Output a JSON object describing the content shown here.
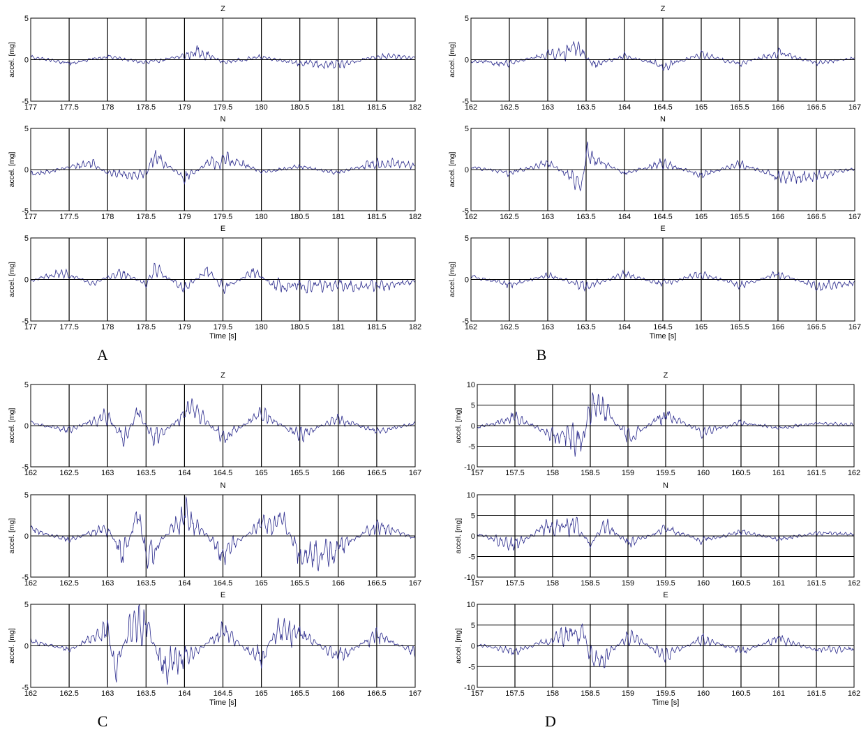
{
  "figure_title": "",
  "chart_data": [
    {
      "type": "line",
      "panel": "A",
      "component": "Z",
      "title": "Z",
      "ylabel": "accel. [mg]",
      "xlabel": "",
      "xlim": [
        177,
        182
      ],
      "ylim": [
        -5,
        5
      ],
      "xticks": [
        "177",
        "177.5",
        "178",
        "178.5",
        "179",
        "179.5",
        "180",
        "180.5",
        "181",
        "181.5",
        "182"
      ],
      "yticks": [
        "-5",
        "0",
        "5"
      ],
      "series": [
        {
          "x": [
            177,
            177.5,
            178,
            178.5,
            179,
            179.2,
            179.5,
            180,
            180.5,
            181,
            181.5,
            182
          ],
          "values": [
            0.6,
            -0.8,
            0.7,
            -0.7,
            0.8,
            1.9,
            -0.6,
            0.6,
            -0.8,
            -1.3,
            0.8,
            0.4
          ]
        }
      ]
    },
    {
      "type": "line",
      "panel": "A",
      "component": "N",
      "title": "N",
      "ylabel": "accel. [mg]",
      "xlabel": "",
      "xlim": [
        177,
        182
      ],
      "ylim": [
        -5,
        5
      ],
      "xticks": [
        "177",
        "177.5",
        "178",
        "178.5",
        "179",
        "179.5",
        "180",
        "180.5",
        "181",
        "181.5",
        "182"
      ],
      "yticks": [
        "-5",
        "0",
        "5"
      ],
      "series": [
        {
          "x": [
            177,
            177.5,
            177.8,
            178,
            178.5,
            178.6,
            179,
            179.3,
            179.6,
            180,
            180.5,
            181,
            181.5,
            182
          ],
          "values": [
            -1.3,
            0.5,
            1.5,
            -0.8,
            -1.2,
            3.0,
            -1.8,
            1.2,
            2.1,
            -0.5,
            0.6,
            -0.7,
            1.5,
            0.8
          ]
        }
      ]
    },
    {
      "type": "line",
      "panel": "A",
      "component": "E",
      "title": "E",
      "ylabel": "accel. [mg]",
      "xlabel": "Time [s]",
      "xlim": [
        177,
        182
      ],
      "ylim": [
        -5,
        5
      ],
      "xticks": [
        "177",
        "177.5",
        "178",
        "178.5",
        "179",
        "179.5",
        "180",
        "180.5",
        "181",
        "181.5",
        "182"
      ],
      "yticks": [
        "-5",
        "0",
        "5"
      ],
      "series": [
        {
          "x": [
            177,
            177.4,
            177.8,
            178.2,
            178.5,
            178.6,
            179,
            179.3,
            179.5,
            179.9,
            180.2,
            180.5,
            181,
            181.5,
            182
          ],
          "values": [
            -0.3,
            1.5,
            -0.9,
            1.6,
            -1.0,
            2.2,
            -1.8,
            2.0,
            -1.9,
            1.5,
            -1.6,
            -1.8,
            -1.3,
            -1.4,
            -0.5
          ]
        }
      ]
    },
    {
      "type": "line",
      "panel": "B",
      "component": "Z",
      "title": "Z",
      "ylabel": "accel. [mg]",
      "xlabel": "",
      "xlim": [
        162,
        167
      ],
      "ylim": [
        -5,
        5
      ],
      "xticks": [
        "162",
        "162.5",
        "163",
        "163.5",
        "164",
        "164.5",
        "165",
        "165.5",
        "166",
        "166.5",
        "167"
      ],
      "yticks": [
        "-5",
        "0",
        "5"
      ],
      "series": [
        {
          "x": [
            162,
            162.5,
            163,
            163.4,
            163.6,
            164,
            164.5,
            165,
            165.5,
            166,
            166.5,
            167
          ],
          "values": [
            -0.4,
            -0.9,
            1.2,
            2.3,
            -1.2,
            0.8,
            -1.4,
            1.1,
            -0.9,
            1.4,
            -0.7,
            0.4
          ]
        }
      ]
    },
    {
      "type": "line",
      "panel": "B",
      "component": "N",
      "title": "N",
      "ylabel": "accel. [mg]",
      "xlabel": "",
      "xlim": [
        162,
        167
      ],
      "ylim": [
        -5,
        5
      ],
      "xticks": [
        "162",
        "162.5",
        "163",
        "163.5",
        "164",
        "164.5",
        "165",
        "165.5",
        "166",
        "166.5",
        "167"
      ],
      "yticks": [
        "-5",
        "0",
        "5"
      ],
      "series": [
        {
          "x": [
            162,
            162.5,
            163,
            163.3,
            163.45,
            163.5,
            164,
            164.5,
            165,
            165.5,
            166,
            166.5,
            167
          ],
          "values": [
            0.6,
            -0.8,
            1.4,
            -1.6,
            -3.0,
            3.1,
            -0.8,
            1.4,
            -1.2,
            1.2,
            -1.5,
            -1.6,
            0.2
          ]
        }
      ]
    },
    {
      "type": "line",
      "panel": "B",
      "component": "E",
      "title": "E",
      "ylabel": "accel. [mg]",
      "xlabel": "Time [s]",
      "xlim": [
        162,
        167
      ],
      "ylim": [
        -5,
        5
      ],
      "xticks": [
        "162",
        "162.5",
        "163",
        "163.5",
        "164",
        "164.5",
        "165",
        "165.5",
        "166",
        "166.5",
        "167"
      ],
      "yticks": [
        "-5",
        "0",
        "5"
      ],
      "series": [
        {
          "x": [
            162,
            162.5,
            163,
            163.5,
            164,
            164.5,
            165,
            165.5,
            166,
            166.5,
            167
          ],
          "values": [
            0.8,
            -1.2,
            0.9,
            -1.5,
            1.1,
            -1.0,
            1.2,
            -1.3,
            1.2,
            -1.4,
            -0.8
          ]
        }
      ]
    },
    {
      "type": "line",
      "panel": "C",
      "component": "Z",
      "title": "Z",
      "ylabel": "accel. [mg]",
      "xlabel": "",
      "xlim": [
        162,
        167
      ],
      "ylim": [
        -5,
        5
      ],
      "xticks": [
        "162",
        "162.5",
        "163",
        "163.5",
        "164",
        "164.5",
        "165",
        "165.5",
        "166",
        "166.5",
        "167"
      ],
      "yticks": [
        "-5",
        "0",
        "5"
      ],
      "series": [
        {
          "x": [
            162,
            162.5,
            163,
            163.2,
            163.4,
            163.6,
            164,
            164.1,
            164.5,
            165,
            165.5,
            166,
            166.5,
            167
          ],
          "values": [
            0.6,
            -1.0,
            2.4,
            -3.3,
            3.0,
            -3.1,
            2.5,
            4.2,
            -2.8,
            2.5,
            -2.0,
            1.5,
            -1.3,
            0.5
          ]
        }
      ]
    },
    {
      "type": "line",
      "panel": "C",
      "component": "N",
      "title": "N",
      "ylabel": "accel. [mg]",
      "xlabel": "",
      "xlim": [
        162,
        167
      ],
      "ylim": [
        -5,
        5
      ],
      "xticks": [
        "162",
        "162.5",
        "163",
        "163.5",
        "164",
        "164.5",
        "165",
        "165.5",
        "166",
        "166.5",
        "167"
      ],
      "yticks": [
        "-5",
        "0",
        "5"
      ],
      "series": [
        {
          "x": [
            162,
            162.5,
            163,
            163.2,
            163.4,
            163.5,
            164,
            164.5,
            165,
            165.3,
            165.5,
            166,
            166.5,
            167
          ],
          "values": [
            1.5,
            -1.0,
            2.0,
            -5.0,
            5.0,
            -5.0,
            5.0,
            -3.5,
            2.5,
            3.0,
            -4.5,
            -3.0,
            2.5,
            -0.5
          ]
        }
      ]
    },
    {
      "type": "line",
      "panel": "C",
      "component": "E",
      "title": "E",
      "ylabel": "accel. [mg]",
      "xlabel": "Time [s]",
      "xlim": [
        162,
        167
      ],
      "ylim": [
        -5,
        5
      ],
      "xticks": [
        "162",
        "162.5",
        "163",
        "163.5",
        "164",
        "164.5",
        "165",
        "165.5",
        "166",
        "166.5",
        "167"
      ],
      "yticks": [
        "-5",
        "0",
        "5"
      ],
      "series": [
        {
          "x": [
            162,
            162.5,
            163,
            163.1,
            163.3,
            163.5,
            163.7,
            164,
            164.5,
            165,
            165.2,
            165.5,
            166,
            166.5,
            167
          ],
          "values": [
            1.0,
            -0.8,
            3.0,
            -5.0,
            4.5,
            5.0,
            -4.0,
            -3.0,
            3.0,
            -3.2,
            3.8,
            2.8,
            -2.5,
            2.3,
            -1.5
          ]
        }
      ]
    },
    {
      "type": "line",
      "panel": "D",
      "component": "Z",
      "title": "Z",
      "ylabel": "accel. [mg]",
      "xlabel": "",
      "xlim": [
        157,
        162
      ],
      "ylim": [
        -10,
        10
      ],
      "xticks": [
        "157",
        "157.5",
        "158",
        "158.5",
        "159",
        "159.5",
        "160",
        "160.5",
        "161",
        "161.5",
        "162"
      ],
      "yticks": [
        "-10",
        "-5",
        "0",
        "5",
        "10"
      ],
      "series": [
        {
          "x": [
            157,
            157.5,
            158,
            158.4,
            158.5,
            158.7,
            159,
            159.5,
            160,
            160.5,
            161,
            161.5,
            162
          ],
          "values": [
            -0.8,
            3.5,
            -3.8,
            -7.5,
            8.5,
            6.2,
            -5.0,
            4.5,
            -2.8,
            1.5,
            -1.2,
            1.0,
            0.4
          ]
        }
      ]
    },
    {
      "type": "line",
      "panel": "D",
      "component": "N",
      "title": "N",
      "ylabel": "accel. [mg]",
      "xlabel": "",
      "xlim": [
        157,
        162
      ],
      "ylim": [
        -10,
        10
      ],
      "xticks": [
        "157",
        "157.5",
        "158",
        "158.5",
        "159",
        "159.5",
        "160",
        "160.5",
        "161",
        "161.5",
        "162"
      ],
      "yticks": [
        "-10",
        "-5",
        "0",
        "5",
        "10"
      ],
      "series": [
        {
          "x": [
            157,
            157.5,
            157.9,
            158.3,
            158.5,
            158.7,
            159,
            159.5,
            160,
            160.5,
            161,
            161.5,
            162
          ],
          "values": [
            0.8,
            -4.5,
            3.8,
            4.8,
            -3.5,
            5.0,
            -3.5,
            3.0,
            -2.2,
            1.8,
            -1.5,
            1.2,
            0.7
          ]
        }
      ]
    },
    {
      "type": "line",
      "panel": "D",
      "component": "E",
      "title": "E",
      "ylabel": "accel. [mg]",
      "xlabel": "Time [s]",
      "xlim": [
        157,
        162
      ],
      "ylim": [
        -10,
        10
      ],
      "xticks": [
        "157",
        "157.5",
        "158",
        "158.5",
        "159",
        "159.5",
        "160",
        "160.5",
        "161",
        "161.5",
        "162"
      ],
      "yticks": [
        "-10",
        "-5",
        "0",
        "5",
        "10"
      ],
      "series": [
        {
          "x": [
            157,
            157.5,
            158,
            158.4,
            158.5,
            158.7,
            159,
            159.5,
            160,
            160.5,
            161,
            161.5,
            162
          ],
          "values": [
            0.5,
            -2.5,
            3.0,
            6.8,
            -5.5,
            -5.2,
            4.5,
            -4.0,
            3.0,
            -2.5,
            3.2,
            -1.8,
            -1.5
          ]
        }
      ]
    }
  ],
  "panel_labels": [
    "A",
    "B",
    "C",
    "D"
  ],
  "colors": {
    "trace": "#2a2a8c",
    "grid": "#000000",
    "background": "#ffffff"
  }
}
